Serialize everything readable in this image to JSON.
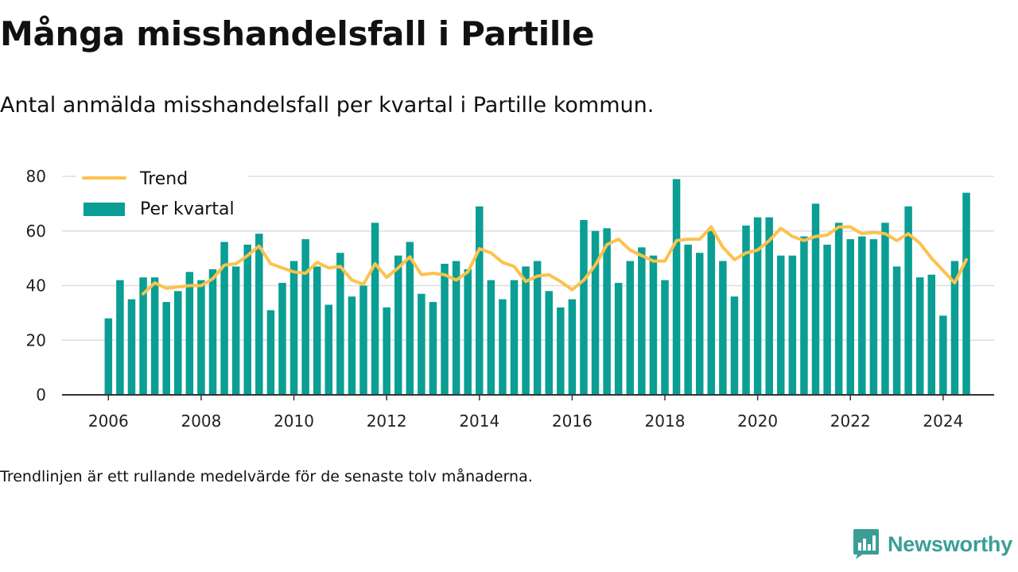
{
  "title": "Många misshandelsfall i Partille",
  "subtitle": "Antal anmälda misshandelsfall per kvartal i Partille kommun.",
  "note": "Trendlinjen är ett rullande medelvärde för de senaste tolv månaderna.",
  "brand": "Newsworthy",
  "colors": {
    "bar": "#0a9e94",
    "trend": "#fcc24c",
    "grid": "#dddddd",
    "axis": "#333333",
    "brand": "#3a9e96"
  },
  "chart_data": {
    "type": "bar",
    "title": "Många misshandelsfall i Partille",
    "xlabel": "",
    "ylabel": "",
    "ylim": [
      0,
      80
    ],
    "yticks": [
      0,
      20,
      40,
      60,
      80
    ],
    "xticks": [
      2006,
      2008,
      2010,
      2012,
      2014,
      2016,
      2018,
      2020,
      2022,
      2024
    ],
    "xlim": [
      2005,
      2025.1
    ],
    "grid": true,
    "legend_position": "top-left",
    "first_quarter": "2006-Q1",
    "series": [
      {
        "name": "Per kvartal",
        "type": "bar",
        "values": [
          28,
          42,
          35,
          43,
          43,
          34,
          38,
          45,
          42,
          46,
          56,
          47,
          55,
          59,
          31,
          41,
          49,
          57,
          47,
          33,
          52,
          36,
          40,
          63,
          32,
          51,
          56,
          37,
          34,
          48,
          49,
          46,
          69,
          42,
          35,
          42,
          47,
          49,
          38,
          32,
          35,
          64,
          60,
          61,
          41,
          49,
          54,
          51,
          42,
          79,
          55,
          52,
          60,
          49,
          36,
          62,
          65,
          65,
          51,
          51,
          58,
          70,
          55,
          63,
          57,
          58,
          57,
          63,
          47,
          69,
          43,
          44,
          29,
          49,
          74
        ]
      },
      {
        "name": "Trend",
        "type": "line",
        "start_quarter_index": 3,
        "values": [
          37,
          41,
          39,
          39.5,
          40,
          40,
          42.5,
          47.5,
          48,
          51,
          54.5,
          48,
          46.5,
          45,
          44.5,
          48.5,
          46.5,
          47,
          42,
          40.5,
          48,
          43,
          46.5,
          50.5,
          44,
          44.5,
          44,
          42,
          45,
          53.5,
          52,
          48.5,
          47,
          41.5,
          43.5,
          44,
          41.5,
          38.5,
          42,
          47.5,
          55,
          57,
          53,
          51,
          49,
          49,
          56.5,
          57,
          57,
          61.5,
          54,
          49.5,
          52,
          53,
          56.5,
          61,
          58,
          56.5,
          58,
          58.5,
          61.5,
          61.5,
          59,
          59.5,
          59,
          56.5,
          59,
          55.5,
          50,
          45.5,
          41,
          49.5
        ]
      }
    ]
  }
}
